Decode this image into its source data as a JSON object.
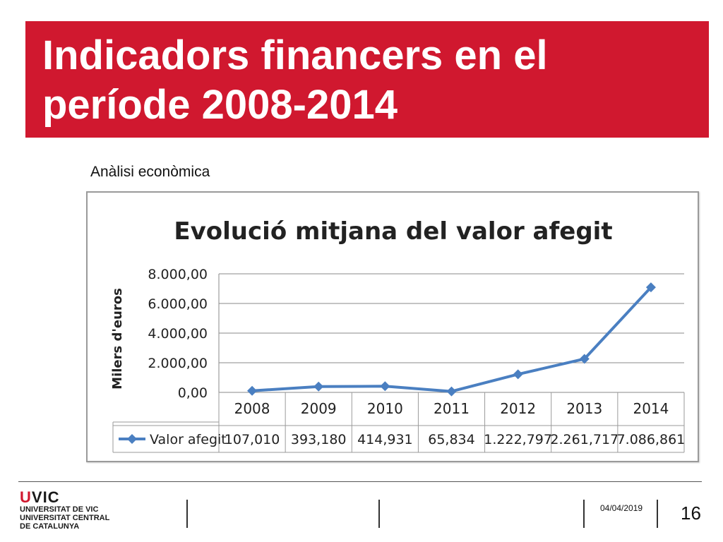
{
  "slide": {
    "title": "Indicadors financers en el període 2008-2014",
    "subtitle": "Anàlisi econòmica",
    "date": "04/04/2019",
    "page_number": "16"
  },
  "logo": {
    "mark_u": "U",
    "mark_rest": "VIC",
    "line1": "UNIVERSITAT DE VIC",
    "line2": "UNIVERSITAT CENTRAL",
    "line3": "DE CATALUNYA"
  },
  "colors": {
    "title_band": "#d0182f",
    "series_line": "#4a7fc1"
  },
  "chart_data": {
    "type": "line",
    "title": "Evolució mitjana del valor afegit",
    "ylabel": "Milers d'euros",
    "xlabel": "",
    "categories": [
      "2008",
      "2009",
      "2010",
      "2011",
      "2012",
      "2013",
      "2014"
    ],
    "ylim": [
      0,
      8000
    ],
    "ytick_values": [
      0,
      2000,
      4000,
      6000,
      8000
    ],
    "ytick_labels": [
      "0,00",
      "2.000,00",
      "4.000,00",
      "6.000,00",
      "8.000,00"
    ],
    "grid": true,
    "legend": "data-table",
    "series": [
      {
        "name": "Valor afegit",
        "values": [
          107.01,
          393.18,
          414.931,
          65.834,
          1222.797,
          2261.717,
          7086.861
        ],
        "value_labels": [
          "107,010",
          "393,180",
          "414,931",
          "65,834",
          "1.222,797",
          "2.261,717",
          "7.086,861"
        ]
      }
    ]
  }
}
